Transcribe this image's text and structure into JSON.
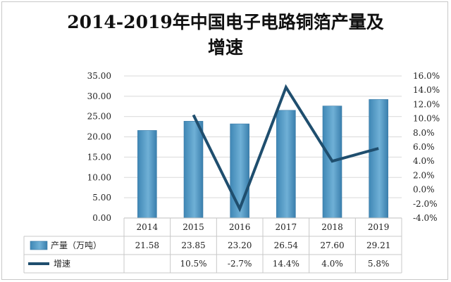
{
  "chart_data": {
    "type": "bar",
    "title_line1": "2014-2019年中国电子电路铜箔产量及",
    "title_line2": "增速",
    "categories": [
      "2014",
      "2015",
      "2016",
      "2017",
      "2018",
      "2019"
    ],
    "series": [
      {
        "name": "产量（万吨）",
        "type": "bar",
        "axis": "left",
        "values": [
          21.58,
          23.85,
          23.2,
          26.54,
          27.6,
          29.21
        ],
        "table_values": [
          "21.58",
          "23.85",
          "23.20",
          "26.54",
          "27.60",
          "29.21"
        ],
        "color": "#4a93bf"
      },
      {
        "name": "增速",
        "type": "line",
        "axis": "right",
        "values": [
          null,
          10.5,
          -2.7,
          14.4,
          4.0,
          5.8
        ],
        "table_values": [
          "",
          "10.5%",
          "-2.7%",
          "14.4%",
          "4.0%",
          "5.8%"
        ],
        "color": "#1f4e6e"
      }
    ],
    "y_left": {
      "ylim": [
        0,
        35
      ],
      "ticks": [
        "0.00",
        "5.00",
        "10.00",
        "15.00",
        "20.00",
        "25.00",
        "30.00",
        "35.00"
      ]
    },
    "y_right": {
      "ylim": [
        -4,
        16
      ],
      "ticks": [
        "-4.0%",
        "-2.0%",
        "0.0%",
        "2.0%",
        "4.0%",
        "6.0%",
        "8.0%",
        "10.0%",
        "12.0%",
        "14.0%",
        "16.0%"
      ]
    },
    "grid": true,
    "legend": "data-table"
  }
}
